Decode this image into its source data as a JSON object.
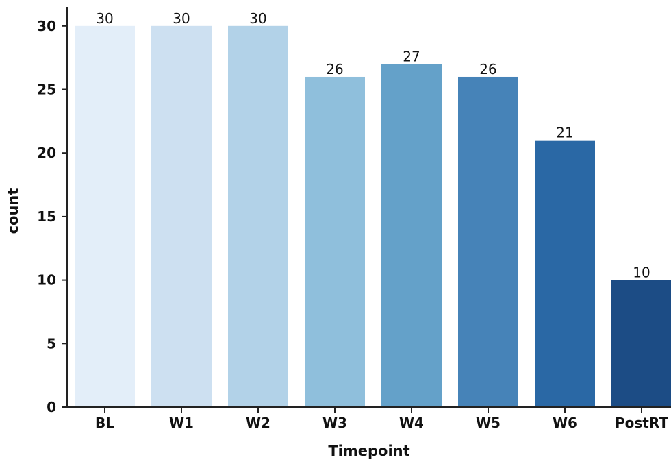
{
  "chart_data": {
    "type": "bar",
    "title": "",
    "xlabel": "Timepoint",
    "ylabel": "count",
    "categories": [
      "BL",
      "W1",
      "W2",
      "W3",
      "W4",
      "W5",
      "W6",
      "PostRT"
    ],
    "values": [
      30,
      30,
      30,
      26,
      27,
      26,
      21,
      10
    ],
    "data_labels": [
      "30",
      "30",
      "30",
      "26",
      "27",
      "26",
      "21",
      "10"
    ],
    "ylim": [
      0,
      31.5
    ],
    "yticks": [
      0,
      5,
      10,
      15,
      20,
      25,
      30
    ],
    "grid": false,
    "legend": "none",
    "colors": [
      "#e3eef9",
      "#cde0f1",
      "#b2d2e8",
      "#8fbfdc",
      "#64a1c9",
      "#4683b8",
      "#2a68a5",
      "#1c4c85"
    ]
  }
}
